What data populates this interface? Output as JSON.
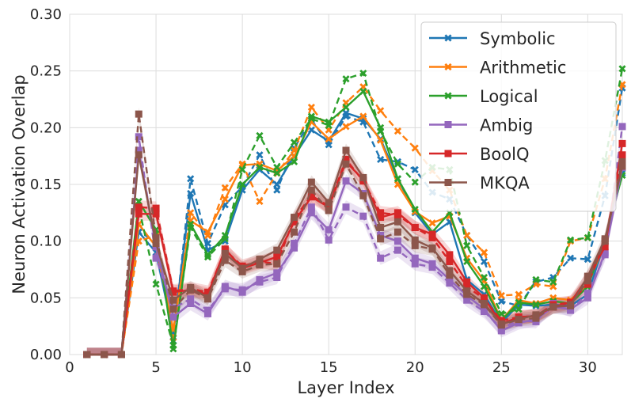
{
  "chart_data": {
    "type": "line",
    "xlabel": "Layer Index",
    "ylabel": "Neuron Activation Overlap",
    "xlim": [
      0,
      32
    ],
    "ylim": [
      0,
      0.3
    ],
    "x_ticks": [
      0,
      5,
      10,
      15,
      20,
      25,
      30
    ],
    "y_ticks": [
      "0.00",
      "0.05",
      "0.10",
      "0.15",
      "0.20",
      "0.25",
      "0.30"
    ],
    "grid": true,
    "legend_position": "top-right",
    "x": [
      1,
      2,
      3,
      4,
      5,
      6,
      7,
      8,
      9,
      10,
      11,
      12,
      13,
      14,
      15,
      16,
      17,
      18,
      19,
      20,
      21,
      22,
      23,
      24,
      25,
      26,
      27,
      28,
      29,
      30,
      31,
      32
    ],
    "series": [
      {
        "name": "Symbolic",
        "color": "#1f77b4",
        "marker": "x",
        "solid": [
          0,
          0,
          0,
          0.108,
          0.09,
          0.018,
          0.142,
          0.092,
          0.1,
          0.145,
          0.163,
          0.15,
          0.175,
          0.198,
          0.188,
          0.213,
          0.208,
          0.19,
          0.155,
          0.125,
          0.106,
          0.117,
          0.066,
          0.053,
          0.028,
          0.044,
          0.043,
          0.044,
          0.043,
          0.053,
          0.1,
          0.16
        ],
        "dashed": [
          0,
          0,
          0,
          0.108,
          0.1,
          0.012,
          0.155,
          0.098,
          0.132,
          0.148,
          0.176,
          0.145,
          0.182,
          0.207,
          0.185,
          0.21,
          0.205,
          0.172,
          0.17,
          0.163,
          0.143,
          0.137,
          0.105,
          0.082,
          0.047,
          0.043,
          0.064,
          0.068,
          0.085,
          0.084,
          0.14,
          0.235
        ]
      },
      {
        "name": "Arithmetic",
        "color": "#ff7f0e",
        "marker": "x",
        "solid": [
          0,
          0,
          0,
          0.115,
          0.095,
          0.022,
          0.118,
          0.108,
          0.137,
          0.167,
          0.168,
          0.162,
          0.175,
          0.205,
          0.19,
          0.201,
          0.21,
          0.189,
          0.15,
          0.126,
          0.116,
          0.122,
          0.085,
          0.065,
          0.03,
          0.048,
          0.045,
          0.05,
          0.048,
          0.062,
          0.098,
          0.165
        ],
        "dashed": [
          0,
          0,
          0,
          0.1,
          0.105,
          0.015,
          0.125,
          0.105,
          0.147,
          0.168,
          0.135,
          0.16,
          0.18,
          0.218,
          0.198,
          0.222,
          0.236,
          0.215,
          0.197,
          0.182,
          0.162,
          0.145,
          0.105,
          0.09,
          0.052,
          0.053,
          0.062,
          0.06,
          0.1,
          0.103,
          0.155,
          0.238
        ]
      },
      {
        "name": "Logical",
        "color": "#2ca02c",
        "marker": "x",
        "solid": [
          0,
          0,
          0,
          0.135,
          0.11,
          0.005,
          0.115,
          0.088,
          0.105,
          0.15,
          0.165,
          0.16,
          0.17,
          0.21,
          0.205,
          0.218,
          0.232,
          0.2,
          0.155,
          0.128,
          0.108,
          0.125,
          0.082,
          0.06,
          0.03,
          0.046,
          0.044,
          0.047,
          0.045,
          0.06,
          0.102,
          0.158
        ],
        "dashed": [
          0,
          0,
          0,
          0.13,
          0.062,
          0.008,
          0.112,
          0.086,
          0.102,
          0.163,
          0.193,
          0.165,
          0.187,
          0.208,
          0.202,
          0.243,
          0.248,
          0.197,
          0.168,
          0.152,
          0.165,
          0.163,
          0.096,
          0.068,
          0.036,
          0.04,
          0.066,
          0.064,
          0.101,
          0.103,
          0.171,
          0.252
        ]
      },
      {
        "name": "Ambig",
        "color": "#9467bd",
        "marker": "s",
        "solid": [
          0,
          0,
          0,
          0.18,
          0.095,
          0.033,
          0.045,
          0.036,
          0.06,
          0.055,
          0.066,
          0.072,
          0.094,
          0.125,
          0.11,
          0.153,
          0.142,
          0.105,
          0.1,
          0.085,
          0.08,
          0.066,
          0.052,
          0.04,
          0.021,
          0.028,
          0.031,
          0.042,
          0.04,
          0.05,
          0.09,
          0.165
        ],
        "dashed": [
          0,
          0,
          0,
          0.192,
          0.085,
          0.041,
          0.049,
          0.039,
          0.058,
          0.057,
          0.064,
          0.068,
          0.098,
          0.13,
          0.101,
          0.13,
          0.122,
          0.085,
          0.092,
          0.08,
          0.077,
          0.063,
          0.048,
          0.038,
          0.023,
          0.03,
          0.029,
          0.045,
          0.039,
          0.054,
          0.088,
          0.201
        ]
      },
      {
        "name": "BoolQ",
        "color": "#d62728",
        "marker": "s",
        "solid": [
          0,
          0,
          0,
          0.124,
          0.124,
          0.055,
          0.057,
          0.053,
          0.093,
          0.076,
          0.081,
          0.086,
          0.117,
          0.139,
          0.13,
          0.17,
          0.154,
          0.121,
          0.125,
          0.112,
          0.106,
          0.088,
          0.064,
          0.05,
          0.027,
          0.033,
          0.034,
          0.042,
          0.046,
          0.068,
          0.095,
          0.186
        ],
        "dashed": [
          0,
          0,
          0,
          0.13,
          0.129,
          0.056,
          0.058,
          0.055,
          0.092,
          0.078,
          0.082,
          0.08,
          0.12,
          0.14,
          0.131,
          0.172,
          0.153,
          0.125,
          0.123,
          0.112,
          0.103,
          0.082,
          0.06,
          0.049,
          0.03,
          0.033,
          0.034,
          0.044,
          0.046,
          0.062,
          0.1,
          0.176
        ]
      },
      {
        "name": "MKQA",
        "color": "#8c564b",
        "marker": "s",
        "solid": [
          0,
          0,
          0,
          0.176,
          0.098,
          0.048,
          0.059,
          0.05,
          0.089,
          0.076,
          0.084,
          0.092,
          0.121,
          0.152,
          0.134,
          0.18,
          0.156,
          0.112,
          0.117,
          0.101,
          0.094,
          0.074,
          0.056,
          0.045,
          0.027,
          0.031,
          0.035,
          0.042,
          0.043,
          0.069,
          0.102,
          0.166
        ],
        "dashed": [
          0,
          0,
          0,
          0.212,
          0.103,
          0.04,
          0.057,
          0.049,
          0.083,
          0.073,
          0.079,
          0.08,
          0.108,
          0.145,
          0.127,
          0.168,
          0.14,
          0.102,
          0.108,
          0.096,
          0.093,
          0.07,
          0.053,
          0.044,
          0.026,
          0.031,
          0.032,
          0.042,
          0.044,
          0.065,
          0.1,
          0.17
        ]
      }
    ]
  }
}
